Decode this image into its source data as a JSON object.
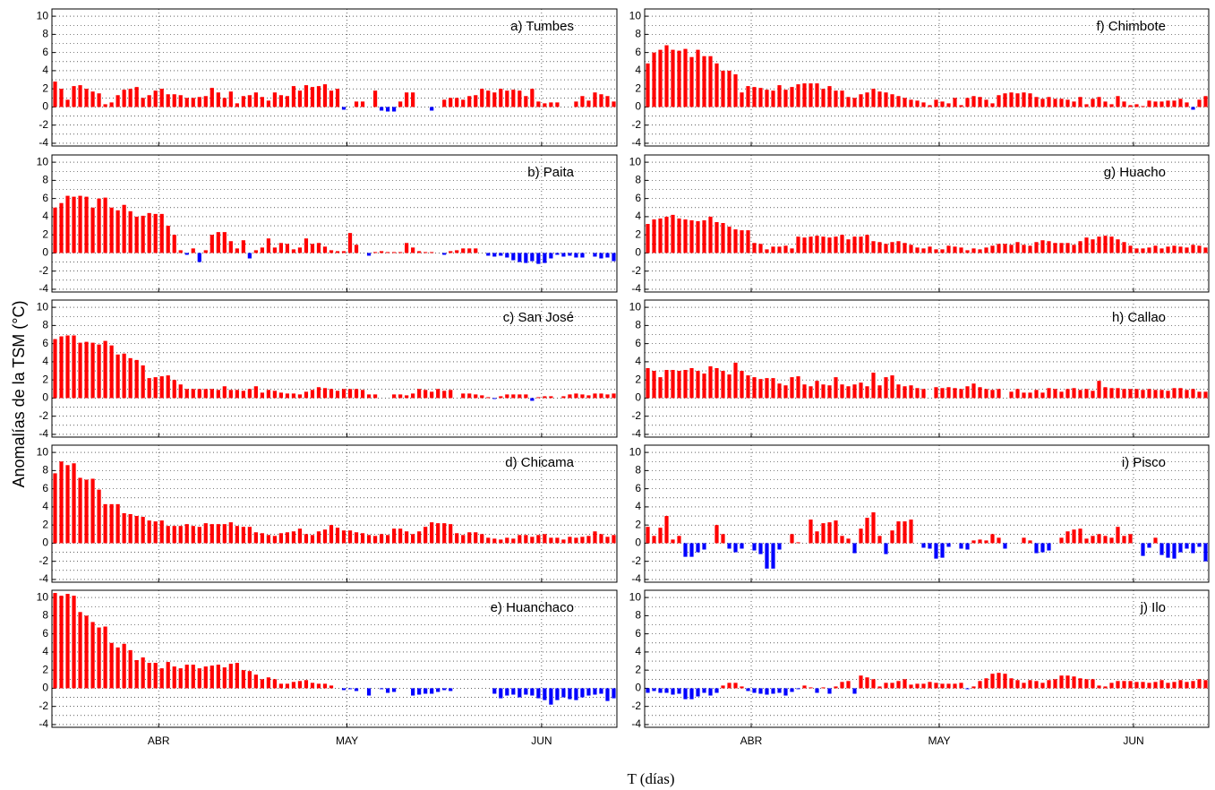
{
  "chart_data": {
    "type": "bar",
    "ylabel": "Anomalías de la TSM (°C)",
    "xlabel": "T (días)",
    "categories": [
      null,
      null,
      null,
      null,
      null,
      null,
      null,
      null,
      null,
      null,
      null,
      null,
      null,
      null,
      null,
      null,
      null,
      "ABR",
      null,
      null,
      null,
      null,
      null,
      null,
      null,
      null,
      null,
      null,
      null,
      null,
      null,
      null,
      null,
      null,
      null,
      null,
      null,
      null,
      null,
      null,
      null,
      null,
      null,
      null,
      null,
      null,
      null,
      "MAY",
      null,
      null,
      null,
      null,
      null,
      null,
      null,
      null,
      null,
      null,
      null,
      null,
      null,
      null,
      null,
      null,
      null,
      null,
      null,
      null,
      null,
      null,
      null,
      null,
      null,
      null,
      null,
      null,
      null,
      null,
      "JUN",
      null,
      null,
      null,
      null,
      null,
      null,
      null,
      null,
      null,
      null,
      null
    ],
    "ylim": [
      -4.3,
      10.8
    ],
    "yticks": [
      -4,
      -2,
      0,
      2,
      4,
      6,
      8,
      10
    ],
    "minor_yticks": [
      -3,
      -1,
      1,
      3,
      5,
      7,
      9
    ],
    "grid": true,
    "color": "#ff0000",
    "negative_color": "#0000ff",
    "series": [
      {
        "name": "a) Tumbes",
        "values": [
          2.8,
          2.0,
          0.8,
          2.3,
          2.4,
          2.0,
          1.7,
          1.5,
          0.3,
          0.5,
          1.3,
          1.9,
          2.0,
          2.2,
          1.0,
          1.3,
          1.8,
          2.0,
          1.4,
          1.4,
          1.3,
          1.0,
          1.0,
          1.1,
          1.2,
          2.1,
          1.6,
          1.0,
          1.7,
          0.4,
          1.2,
          1.3,
          1.6,
          1.1,
          0.7,
          1.6,
          1.3,
          1.2,
          2.3,
          1.8,
          2.4,
          2.2,
          2.3,
          2.5,
          1.8,
          2.0,
          -0.3,
          0,
          0.6,
          0.6,
          0,
          1.8,
          -0.4,
          -0.5,
          -0.5,
          0.6,
          1.6,
          1.6,
          0,
          0,
          -0.4,
          0,
          0.8,
          1.0,
          1.0,
          0.8,
          1.2,
          1.3,
          2.0,
          1.8,
          1.6,
          2.0,
          1.8,
          1.9,
          1.8,
          1.2,
          2.0,
          0.6,
          0.4,
          0.5,
          0.5,
          0,
          0,
          0.6,
          1.2,
          0.7,
          1.6,
          1.4,
          1.2,
          0.6
        ]
      },
      {
        "name": "b) Paita",
        "values": [
          5.0,
          5.5,
          6.3,
          6.2,
          6.3,
          6.2,
          5.0,
          6.0,
          6.1,
          5.0,
          4.7,
          5.3,
          4.6,
          4.0,
          4.1,
          4.4,
          4.3,
          4.3,
          3.0,
          2.0,
          0.3,
          -0.2,
          0.5,
          -1.0,
          0.3,
          2.0,
          2.3,
          2.3,
          1.3,
          0.5,
          1.4,
          -0.6,
          0.3,
          0.6,
          1.6,
          0.6,
          1.1,
          1.0,
          0.4,
          0.6,
          1.6,
          1.0,
          1.1,
          0.7,
          0.3,
          0.2,
          0.2,
          2.2,
          0.9,
          0,
          -0.3,
          0.1,
          0.2,
          0.1,
          0.1,
          0.1,
          1.1,
          0.6,
          0.2,
          0.1,
          0.1,
          0,
          -0.2,
          0.2,
          0.3,
          0.5,
          0.5,
          0.5,
          0,
          -0.3,
          -0.4,
          -0.3,
          -0.5,
          -0.8,
          -1.0,
          -1.1,
          -0.9,
          -1.2,
          -1.1,
          -0.6,
          -0.2,
          -0.4,
          -0.3,
          -0.5,
          -0.5,
          0,
          -0.4,
          -0.6,
          -0.5,
          -0.9
        ]
      },
      {
        "name": "c) San José",
        "values": [
          6.5,
          6.8,
          6.9,
          6.9,
          6.1,
          6.2,
          6.1,
          5.9,
          6.3,
          5.8,
          4.8,
          4.9,
          4.4,
          4.2,
          3.6,
          2.2,
          2.3,
          2.4,
          2.5,
          2.0,
          1.5,
          1.0,
          1.0,
          1.0,
          1.0,
          1.0,
          0.9,
          1.3,
          0.9,
          0.9,
          0.8,
          1.0,
          1.3,
          0.6,
          0.9,
          0.8,
          0.6,
          0.5,
          0.5,
          0.4,
          0.7,
          0.9,
          1.2,
          1.1,
          1.0,
          0.8,
          1.0,
          1.0,
          1.0,
          0.9,
          0.4,
          0.4,
          0,
          0,
          0.4,
          0.4,
          0.3,
          0.5,
          1.0,
          0.9,
          0.7,
          1.0,
          0.8,
          0.9,
          0,
          0.5,
          0.5,
          0.4,
          0.3,
          0.1,
          -0.1,
          0.2,
          0.4,
          0.4,
          0.4,
          0.4,
          -0.3,
          0.1,
          0.2,
          0.2,
          0,
          0.2,
          0.4,
          0.5,
          0.4,
          0.3,
          0.5,
          0.5,
          0.4,
          0.5
        ]
      },
      {
        "name": "d) Chicama",
        "values": [
          7.7,
          9.0,
          8.6,
          8.8,
          7.2,
          7.0,
          7.1,
          5.9,
          4.3,
          4.3,
          4.3,
          3.3,
          3.2,
          3.0,
          2.9,
          2.5,
          2.4,
          2.5,
          1.9,
          1.9,
          1.9,
          2.1,
          1.9,
          1.8,
          2.2,
          2.1,
          2.1,
          2.1,
          2.3,
          1.9,
          1.8,
          1.8,
          1.2,
          1.1,
          0.9,
          0.8,
          1.1,
          1.2,
          1.3,
          1.6,
          1.0,
          0.9,
          1.3,
          1.5,
          2.0,
          1.7,
          1.4,
          1.4,
          1.2,
          1.1,
          0.9,
          0.8,
          1.0,
          0.9,
          1.6,
          1.6,
          1.3,
          1.0,
          1.3,
          1.8,
          2.3,
          2.2,
          2.2,
          2.1,
          1.1,
          0.9,
          1.2,
          1.2,
          1.0,
          0.6,
          0.5,
          0.4,
          0.6,
          0.5,
          0.9,
          0.9,
          0.7,
          0.9,
          1.0,
          0.6,
          0.6,
          0.4,
          0.7,
          0.6,
          0.7,
          0.8,
          1.3,
          1.0,
          0.7,
          0.9
        ]
      },
      {
        "name": "e) Huanchaco",
        "values": [
          10.5,
          10.2,
          10.4,
          10.2,
          8.4,
          8.0,
          7.3,
          6.7,
          6.8,
          5.0,
          4.5,
          4.9,
          4.2,
          3.1,
          3.4,
          2.8,
          2.8,
          2.2,
          2.9,
          2.4,
          2.2,
          2.6,
          2.6,
          2.2,
          2.4,
          2.5,
          2.6,
          2.3,
          2.7,
          2.8,
          2.0,
          1.9,
          1.5,
          1.0,
          1.2,
          1.0,
          0.5,
          0.5,
          0.7,
          0.8,
          0.9,
          0.6,
          0.5,
          0.5,
          0.3,
          0,
          -0.2,
          -0.1,
          -0.3,
          0,
          -0.8,
          0,
          -0.1,
          -0.5,
          -0.4,
          0,
          0,
          -0.8,
          -0.7,
          -0.6,
          -0.6,
          -0.4,
          -0.2,
          -0.3,
          0,
          0,
          0,
          0,
          0,
          0,
          -0.6,
          -1.1,
          -0.8,
          -0.7,
          -1.0,
          -0.7,
          -0.8,
          -1.1,
          -1.3,
          -1.8,
          -1.3,
          -1.0,
          -1.2,
          -1.3,
          -1.0,
          -0.8,
          -0.7,
          -0.6,
          -1.4,
          -1.1
        ]
      },
      {
        "name": "f) Chimbote",
        "values": [
          4.8,
          6.0,
          6.3,
          6.8,
          6.3,
          6.2,
          6.4,
          5.5,
          6.3,
          5.6,
          5.6,
          4.8,
          4.0,
          4.0,
          3.6,
          1.6,
          2.3,
          2.2,
          2.1,
          1.9,
          1.8,
          2.4,
          1.9,
          2.2,
          2.5,
          2.6,
          2.6,
          2.6,
          2.0,
          2.3,
          1.8,
          1.8,
          1.1,
          1.0,
          1.4,
          1.6,
          2.0,
          1.7,
          1.6,
          1.4,
          1.2,
          1.0,
          0.8,
          0.7,
          0.5,
          0.2,
          0.8,
          0.6,
          0.4,
          1.0,
          0.2,
          1.0,
          1.2,
          1.1,
          0.8,
          0.4,
          1.3,
          1.5,
          1.6,
          1.5,
          1.6,
          1.5,
          1.1,
          0.9,
          1.1,
          0.9,
          0.9,
          0.8,
          0.6,
          1.1,
          0.3,
          0.9,
          1.1,
          0.6,
          0.3,
          1.2,
          0.6,
          0.2,
          0.3,
          0.1,
          0.7,
          0.6,
          0.6,
          0.7,
          0.7,
          0.9,
          0.5,
          -0.3,
          0.8,
          1.2
        ]
      },
      {
        "name": "g) Huacho",
        "values": [
          3.2,
          3.7,
          3.8,
          4.0,
          4.2,
          3.8,
          3.7,
          3.6,
          3.5,
          3.6,
          4.0,
          3.4,
          3.3,
          2.9,
          2.6,
          2.5,
          2.5,
          1.1,
          1.0,
          0.4,
          0.7,
          0.7,
          0.8,
          0.5,
          1.8,
          1.7,
          1.8,
          1.9,
          1.8,
          1.7,
          1.8,
          2.0,
          1.5,
          1.8,
          1.8,
          2.0,
          1.3,
          1.2,
          1.0,
          1.2,
          1.3,
          1.1,
          0.9,
          0.6,
          0.5,
          0.7,
          0.4,
          0.4,
          0.8,
          0.7,
          0.6,
          0.3,
          0.5,
          0.4,
          0.6,
          0.8,
          1.0,
          1.0,
          0.9,
          1.2,
          0.9,
          0.8,
          1.2,
          1.4,
          1.3,
          1.1,
          1.1,
          1.1,
          0.9,
          1.3,
          1.7,
          1.5,
          1.8,
          1.9,
          1.8,
          1.5,
          1.2,
          0.8,
          0.5,
          0.5,
          0.6,
          0.8,
          0.5,
          0.7,
          0.8,
          0.7,
          0.6,
          0.9,
          0.8,
          0.6
        ]
      },
      {
        "name": "h) Callao",
        "values": [
          3.3,
          3.0,
          2.3,
          3.1,
          3.1,
          3.0,
          3.1,
          3.3,
          3.0,
          2.7,
          3.5,
          3.3,
          3.0,
          2.6,
          3.9,
          3.0,
          2.5,
          2.3,
          2.1,
          2.2,
          2.2,
          1.6,
          1.4,
          2.3,
          2.4,
          1.5,
          1.3,
          1.9,
          1.5,
          1.4,
          2.3,
          1.5,
          1.3,
          1.5,
          1.7,
          1.3,
          2.8,
          1.4,
          2.3,
          2.5,
          1.5,
          1.3,
          1.4,
          1.1,
          1.0,
          0,
          1.2,
          1.1,
          1.2,
          1.1,
          1.0,
          1.3,
          1.6,
          1.2,
          1.0,
          0.9,
          1.0,
          0,
          0.7,
          1.0,
          0.6,
          0.6,
          0.9,
          0.6,
          1.1,
          1.0,
          0.7,
          1.0,
          1.1,
          0.9,
          1.0,
          0.8,
          1.9,
          1.2,
          1.1,
          1.1,
          1.0,
          1.0,
          1.0,
          0.9,
          1.0,
          0.9,
          0.9,
          0.8,
          1.1,
          1.1,
          0.9,
          1.0,
          0.7,
          0.7
        ]
      },
      {
        "name": "i) Pisco",
        "values": [
          1.8,
          0.8,
          1.7,
          3.0,
          0.4,
          0.8,
          -1.5,
          -1.5,
          -1.0,
          -0.7,
          0,
          2.0,
          1.0,
          -0.6,
          -1.0,
          -0.6,
          0,
          -0.8,
          -1.2,
          -2.8,
          -2.8,
          -0.7,
          0,
          1.0,
          0.1,
          0,
          2.6,
          1.3,
          2.2,
          2.3,
          2.5,
          0.8,
          0.5,
          -1.1,
          1.6,
          2.8,
          3.4,
          0.8,
          -1.2,
          1.4,
          2.4,
          2.4,
          2.6,
          0,
          -0.5,
          -0.6,
          -1.7,
          -1.6,
          -0.4,
          0,
          -0.6,
          -0.7,
          0.3,
          0.4,
          0.3,
          1.0,
          0.6,
          -0.6,
          0,
          0,
          0.6,
          0.3,
          -1.1,
          -1.0,
          -0.8,
          0,
          0.6,
          1.3,
          1.5,
          1.6,
          0.5,
          0.8,
          1.0,
          0.8,
          0.6,
          1.8,
          0.8,
          1.0,
          0,
          -1.4,
          -0.5,
          0.6,
          -1.3,
          -1.6,
          -1.7,
          -1.0,
          -0.6,
          -1.1,
          -0.4,
          -2.0
        ]
      },
      {
        "name": "j) Ilo",
        "values": [
          -0.5,
          -0.3,
          -0.5,
          -0.5,
          -0.7,
          -0.6,
          -1.2,
          -1.2,
          -0.9,
          -0.5,
          -0.8,
          -0.5,
          0.3,
          0.6,
          0.6,
          0.2,
          -0.3,
          -0.5,
          -0.6,
          -0.7,
          -0.6,
          -0.5,
          -0.8,
          -0.4,
          -0.1,
          0.3,
          0.1,
          -0.5,
          0.1,
          -0.6,
          0.2,
          0.7,
          0.8,
          -0.6,
          1.4,
          1.2,
          1.0,
          0.2,
          0.6,
          0.6,
          0.8,
          1.0,
          0.4,
          0.5,
          0.5,
          0.7,
          0.6,
          0.5,
          0.5,
          0.5,
          0.6,
          -0.1,
          0.2,
          0.8,
          1.1,
          1.6,
          1.7,
          1.6,
          1.1,
          0.9,
          0.6,
          0.9,
          0.8,
          0.6,
          0.9,
          1.0,
          1.4,
          1.4,
          1.3,
          1.1,
          1.0,
          1.0,
          0.3,
          0.2,
          0.6,
          0.8,
          0.8,
          0.8,
          0.7,
          0.7,
          0.6,
          0.7,
          0.9,
          0.6,
          0.7,
          0.9,
          0.7,
          0.8,
          1.0,
          0.9
        ]
      }
    ]
  }
}
